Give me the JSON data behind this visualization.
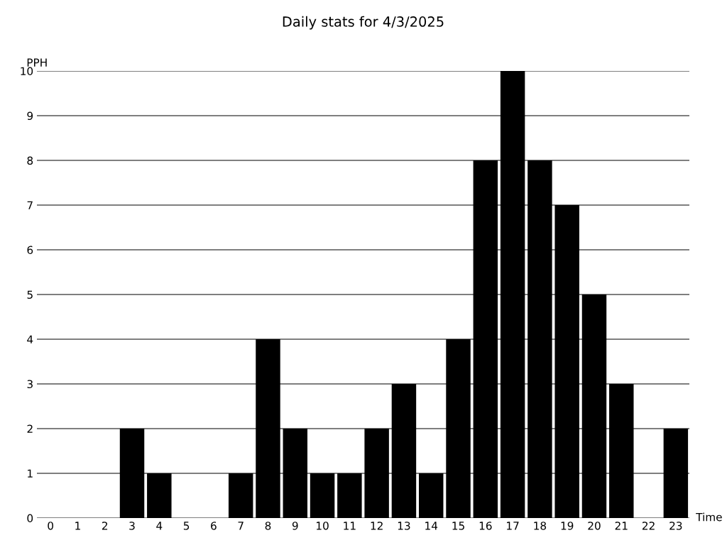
{
  "chart_data": {
    "type": "bar",
    "title": "Daily stats for 4/3/2025",
    "xlabel": "Time",
    "ylabel": "PPH",
    "categories": [
      "0",
      "1",
      "2",
      "3",
      "4",
      "5",
      "6",
      "7",
      "8",
      "9",
      "10",
      "11",
      "12",
      "13",
      "14",
      "15",
      "16",
      "17",
      "18",
      "19",
      "20",
      "21",
      "22",
      "23"
    ],
    "values": [
      0,
      0,
      0,
      2,
      1,
      0,
      0,
      1,
      4,
      2,
      1,
      1,
      2,
      3,
      1,
      4,
      8,
      10,
      8,
      7,
      5,
      3,
      0,
      2
    ],
    "color": "#000000",
    "ylim": [
      0,
      10
    ],
    "yticks": [
      0,
      1,
      2,
      3,
      4,
      5,
      6,
      7,
      8,
      9,
      10
    ],
    "grid": "y",
    "legend": false
  }
}
